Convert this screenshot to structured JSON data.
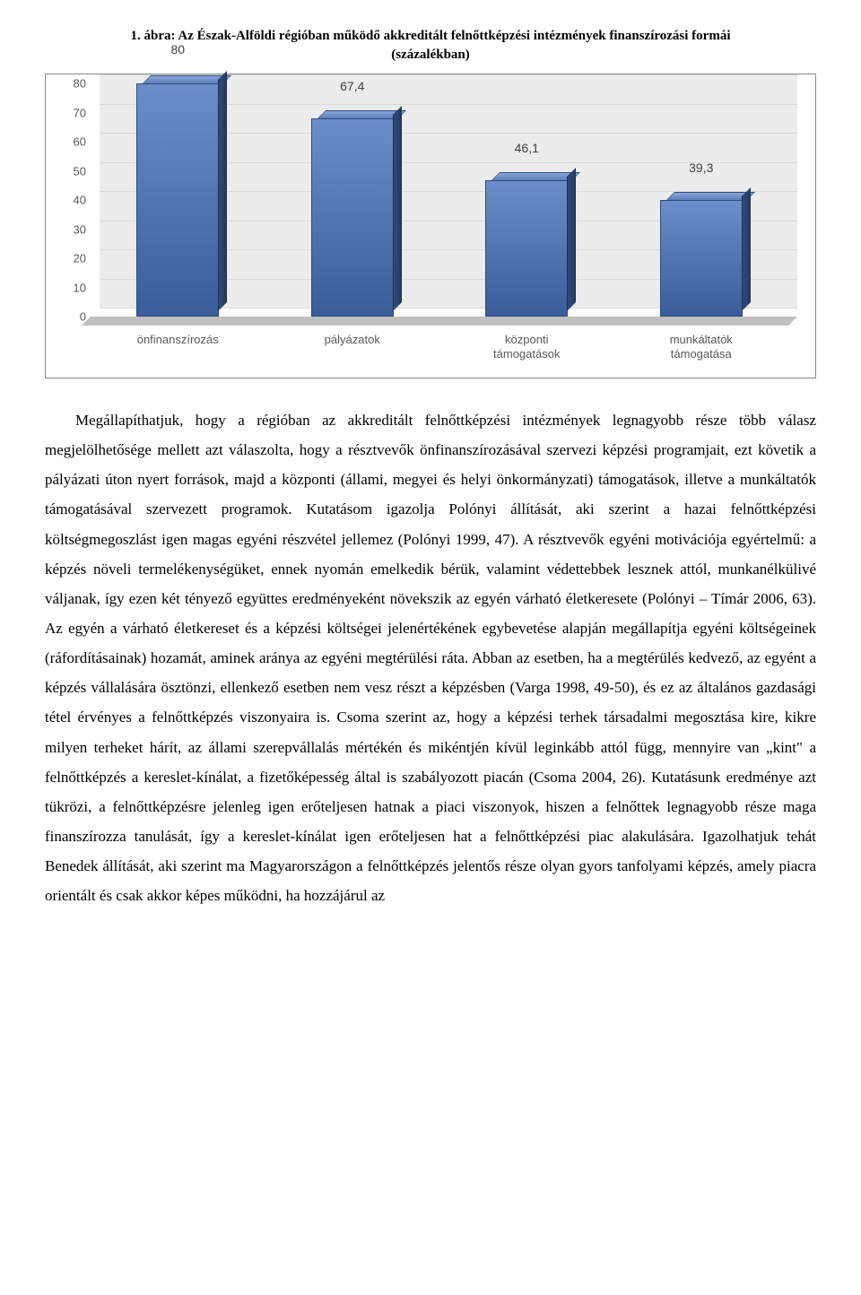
{
  "figure": {
    "title_line1": "1. ábra: Az Észak-Alföldi régióban működő akkreditált felnőttképzési intézmények finanszírozási formái",
    "title_line2": "(százalékban)"
  },
  "chart": {
    "type": "bar-3d",
    "ymax": 80,
    "ytick_step": 10,
    "yticks": [
      "0",
      "10",
      "20",
      "30",
      "40",
      "50",
      "60",
      "70",
      "80"
    ],
    "bar_color_top": "#6b8dc9",
    "bar_color_front": "#3a5c9a",
    "bar_color_side": "#2f4b7c",
    "wall_color": "#ececec",
    "floor_color": "#bfbfbf",
    "grid_color": "#d9d9d9",
    "categories": [
      {
        "label": "önfinanszírozás",
        "value": 80,
        "value_label": "80"
      },
      {
        "label": "pályázatok",
        "value": 67.4,
        "value_label": "67,4"
      },
      {
        "label": "központi támogatások",
        "value": 46.1,
        "value_label": "46,1"
      },
      {
        "label": "munkáltatók támogatása",
        "value": 39.3,
        "value_label": "39,3"
      }
    ]
  },
  "body": {
    "paragraph": "Megállapíthatjuk, hogy a régióban az akkreditált felnőttképzési intézmények legnagyobb része több válasz megjelölhetősége mellett azt válaszolta, hogy a résztvevők önfinanszírozásával szervezi képzési programjait, ezt követik a pályázati úton nyert források, majd a központi (állami, megyei és helyi önkormányzati) támogatások, illetve a munkáltatók támogatásával szervezett programok. Kutatásom igazolja Polónyi állítását, aki szerint a hazai felnőttképzési költségmegoszlást igen magas egyéni részvétel jellemez (Polónyi 1999, 47). A résztvevők egyéni motivációja egyértelmű: a képzés növeli termelékenységüket, ennek nyomán emelkedik bérük, valamint védettebbek lesznek attól, munkanélkülivé váljanak, így ezen két tényező együttes eredményeként növekszik az egyén várható életkeresete (Polónyi – Tímár 2006, 63). Az egyén a várható életkereset és a képzési költségei jelenértékének egybevetése alapján megállapítja egyéni költségeinek (ráfordításainak) hozamát, aminek aránya az egyéni megtérülési ráta. Abban az esetben, ha a megtérülés kedvező, az egyént a képzés vállalására ösztönzi, ellenkező esetben nem vesz részt a képzésben (Varga 1998, 49-50), és ez az általános gazdasági tétel érvényes a felnőttképzés viszonyaira is. Csoma szerint az, hogy a képzési terhek társadalmi megosztása kire, kikre milyen terheket hárít, az állami szerepvállalás mértékén és mikéntjén kívül leginkább attól függ, mennyire van „kint\" a felnőttképzés a kereslet-kínálat, a fizetőképesség által is szabályozott piacán (Csoma 2004, 26). Kutatásunk eredménye azt tükrözi, a felnőttképzésre jelenleg igen erőteljesen hatnak a piaci viszonyok, hiszen a felnőttek legnagyobb része maga finanszírozza tanulását, így a kereslet-kínálat igen erőteljesen hat a felnőttképzési piac alakulására. Igazolhatjuk tehát Benedek állítását, aki szerint ma Magyarországon a felnőttképzés jelentős része olyan gyors tanfolyami képzés, amely piacra orientált és csak akkor képes működni, ha hozzájárul az"
  }
}
